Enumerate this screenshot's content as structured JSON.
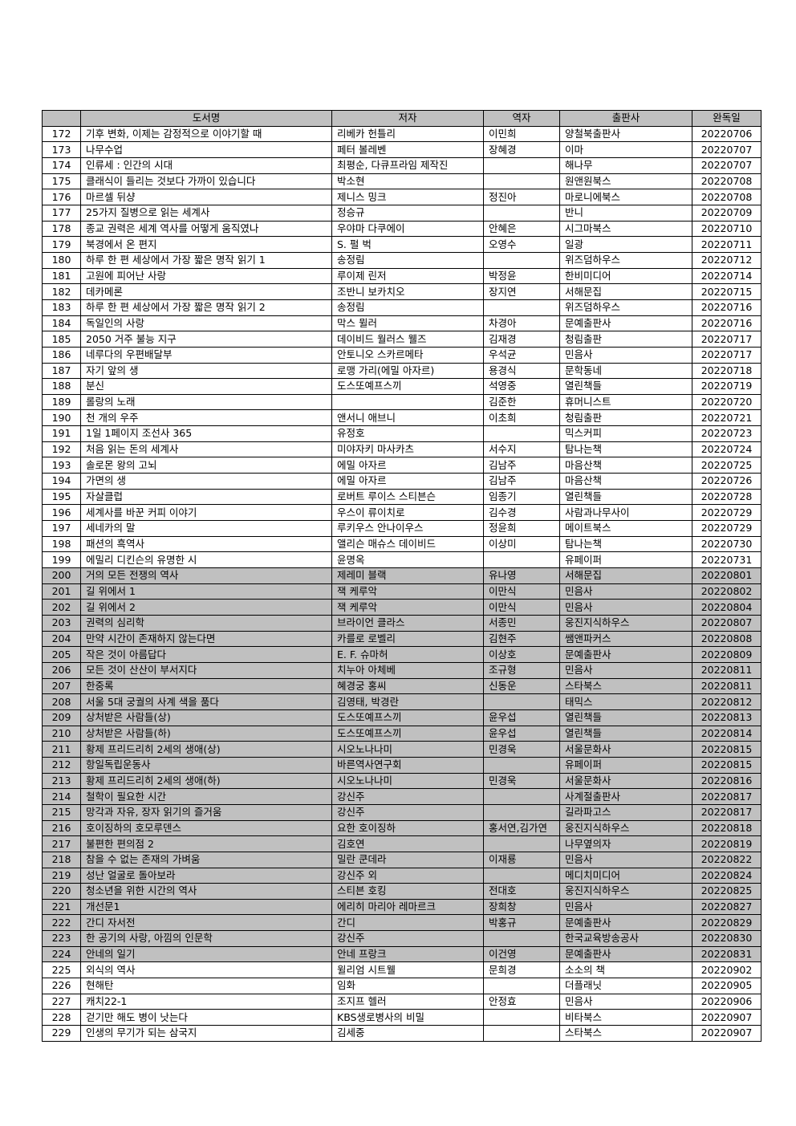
{
  "table": {
    "headers": [
      "",
      "도서명",
      "저자",
      "역자",
      "출판사",
      "완독일"
    ],
    "shade_color": "#c0c0c0",
    "shaded_rows": [
      "200",
      "201",
      "202",
      "203",
      "204",
      "205",
      "206",
      "207",
      "208",
      "209",
      "210",
      "211",
      "212",
      "213",
      "214",
      "215",
      "216",
      "217",
      "218",
      "219",
      "220",
      "221",
      "222",
      "223",
      "224"
    ],
    "rows": [
      [
        "172",
        "기후 변화, 이제는 감정적으로 이야기할 때",
        "리베카 헌틀리",
        "이민희",
        "양철북출판사",
        "20220706"
      ],
      [
        "173",
        "나무수업",
        "페터 볼레벤",
        "장혜경",
        "이마",
        "20220707"
      ],
      [
        "174",
        "인류세 : 인간의 시대",
        "최평순, 다큐프라임 제작진",
        "",
        "해나무",
        "20220707"
      ],
      [
        "175",
        "클래식이 들리는 것보다 가까이 있습니다",
        "박소현",
        "",
        "원앤원북스",
        "20220708"
      ],
      [
        "176",
        "마르셀 뒤샹",
        "제니스 밍크",
        "정진아",
        "마로니에북스",
        "20220708"
      ],
      [
        "177",
        "25가지 질병으로 읽는 세계사",
        "정승규",
        "",
        "반니",
        "20220709"
      ],
      [
        "178",
        "종교 권력은 세계 역사를 어떻게 움직였나",
        "우야마 다쿠에이",
        "안혜은",
        "시그마북스",
        "20220710"
      ],
      [
        "179",
        "북경에서 온 편지",
        "S. 펄 벅",
        "오영수",
        "일광",
        "20220711"
      ],
      [
        "180",
        "하루 한 편 세상에서 가장 짧은 명작 읽기 1",
        "송정림",
        "",
        "위즈덤하우스",
        "20220712"
      ],
      [
        "181",
        "고원에 피어난 사랑",
        "루이제 린저",
        "박정윤",
        "한비미디어",
        "20220714"
      ],
      [
        "182",
        "데카메론",
        "조반니 보카치오",
        "장지연",
        "서해문집",
        "20220715"
      ],
      [
        "183",
        "하루 한 편 세상에서 가장 짧은 명작 읽기 2",
        "송정림",
        "",
        "위즈덤하우스",
        "20220716"
      ],
      [
        "184",
        "독일인의 사랑",
        "막스 뮐러",
        "차경아",
        "문예출판사",
        "20220716"
      ],
      [
        "185",
        "2050 거주 불능 지구",
        "데이비드 월러스 웰즈",
        "김재경",
        "청림출판",
        "20220717"
      ],
      [
        "186",
        "네루다의 우편배달부",
        "안토니오 스카르메타",
        "우석균",
        "민음사",
        "20220717"
      ],
      [
        "187",
        "자기 앞의 생",
        "로맹 가리(에밀 아자르)",
        "용경식",
        "문학동네",
        "20220718"
      ],
      [
        "188",
        "분신",
        "도스또예프스끼",
        "석영중",
        "열린책들",
        "20220719"
      ],
      [
        "189",
        "롤랑의 노래",
        "",
        "김준한",
        "휴머니스트",
        "20220720"
      ],
      [
        "190",
        "천 개의 우주",
        "앤서니 애브니",
        "이초희",
        "청림출판",
        "20220721"
      ],
      [
        "191",
        "1일 1페이지 조선사 365",
        "유정호",
        "",
        "믹스커피",
        "20220723"
      ],
      [
        "192",
        "처음 읽는 돈의 세계사",
        "미야자키 마사카츠",
        "서수지",
        "탐나는책",
        "20220724"
      ],
      [
        "193",
        "솔로몬 왕의 고뇌",
        "에밀 아자르",
        "김남주",
        "마음산책",
        "20220725"
      ],
      [
        "194",
        "가면의 생",
        "에밀 아자르",
        "김남주",
        "마음산책",
        "20220726"
      ],
      [
        "195",
        "자살클럽",
        "로버트 루이스 스티븐슨",
        "임종기",
        "열린책들",
        "20220728"
      ],
      [
        "196",
        "세계사를 바꾼 커피 이야기",
        "우스이 류이치로",
        "김수경",
        "사람과나무사이",
        "20220729"
      ],
      [
        "197",
        "세네카의 말",
        "루키우스 안나이우스",
        "정윤희",
        "메이트북스",
        "20220729"
      ],
      [
        "198",
        "패션의 흑역사",
        "앨리슨 매슈스 데이비드",
        "이상미",
        "탐나는책",
        "20220730"
      ],
      [
        "199",
        "에밀리 디킨슨의 유명한 시",
        "윤명옥",
        "",
        "유페이퍼",
        "20220731"
      ],
      [
        "200",
        "거의 모든 전쟁의 역사",
        "제레미 블랙",
        "유나영",
        "서해문집",
        "20220801"
      ],
      [
        "201",
        "길 위에서 1",
        "잭 케루악",
        "이만식",
        "민음사",
        "20220802"
      ],
      [
        "202",
        "길 위에서 2",
        "잭 케루악",
        "이만식",
        "민음사",
        "20220804"
      ],
      [
        "203",
        "권력의 심리학",
        "브라이언 클라스",
        "서종민",
        "웅진지식하우스",
        "20220807"
      ],
      [
        "204",
        "만약 시간이 존재하지 않는다면",
        "카를로 로벨리",
        "김현주",
        "쌤앤파커스",
        "20220808"
      ],
      [
        "205",
        "작은 것이 아름답다",
        "E. F. 슈마허",
        "이상호",
        "문예출판사",
        "20220809"
      ],
      [
        "206",
        "모든 것이 산산이 부서지다",
        "치누아 아체베",
        "조규형",
        "민음사",
        "20220811"
      ],
      [
        "207",
        "한중록",
        "혜경궁 홍씨",
        "신동운",
        "스타북스",
        "20220811"
      ],
      [
        "208",
        "서울 5대 궁궐의 사계 색을 품다",
        "김영태, 박경란",
        "",
        "태믹스",
        "20220812"
      ],
      [
        "209",
        "상처받은 사람들(상)",
        "도스또예프스끼",
        "윤우섭",
        "열린책들",
        "20220813"
      ],
      [
        "210",
        "상처받은 사람들(하)",
        "도스또예프스끼",
        "윤우섭",
        "열린책들",
        "20220814"
      ],
      [
        "211",
        "황제 프리드리히 2세의 생애(상)",
        "시오노나나미",
        "민경욱",
        "서울문화사",
        "20220815"
      ],
      [
        "212",
        "항일독립운동사",
        "바른역사연구회",
        "",
        "유페이퍼",
        "20220815"
      ],
      [
        "213",
        "황제 프리드리히 2세의 생애(하)",
        "시오노나나미",
        "민경욱",
        "서울문화사",
        "20220816"
      ],
      [
        "214",
        "철학이 필요한 시간",
        "강신주",
        "",
        "사계절출판사",
        "20220817"
      ],
      [
        "215",
        "망각과 자유, 장자 읽기의 즐거움",
        "강신주",
        "",
        "길라파고스",
        "20220817"
      ],
      [
        "216",
        "호이징하의 호모루덴스",
        "요한 호이징하",
        "홍서연,김가연",
        "웅진지식하우스",
        "20220818"
      ],
      [
        "217",
        "불편한 편의점 2",
        "김호연",
        "",
        "나무옆의자",
        "20220819"
      ],
      [
        "218",
        "참을 수 없는 존재의 가벼움",
        "밀란 쿤데라",
        "이재룡",
        "민음사",
        "20220822"
      ],
      [
        "219",
        "성난 얼굴로 돌아보라",
        "강신주 외",
        "",
        "메디치미디어",
        "20220824"
      ],
      [
        "220",
        "청소년을 위한 시간의 역사",
        "스티븐 호킹",
        "전대호",
        "웅진지식하우스",
        "20220825"
      ],
      [
        "221",
        "개선문1",
        "에리히 마리아 레마르크",
        "장희창",
        "민음사",
        "20220827"
      ],
      [
        "222",
        "간디 자서전",
        "간디",
        "박홍규",
        "문예출판사",
        "20220829"
      ],
      [
        "223",
        "한 공기의 사랑, 아낌의 인문학",
        "강신주",
        "",
        "한국교육방송공사",
        "20220830"
      ],
      [
        "224",
        "안네의 일기",
        "안네 프랑크",
        "이건영",
        "문예출판사",
        "20220831"
      ],
      [
        "225",
        "외식의 역사",
        "윌리엄 시트웰",
        "문희경",
        "소소의 책",
        "20220902"
      ],
      [
        "226",
        "현해탄",
        "임화",
        "",
        "더플래닛",
        "20220905"
      ],
      [
        "227",
        "캐치22-1",
        "조지프 헬러",
        "안정효",
        "민음사",
        "20220906"
      ],
      [
        "228",
        "걷기만 해도 병이 낫는다",
        "KBS생로병사의 비밀",
        "",
        "비타북스",
        "20220907"
      ],
      [
        "229",
        "인생의 무기가 되는 삼국지",
        "김세중",
        "",
        "스타북스",
        "20220907"
      ]
    ]
  }
}
